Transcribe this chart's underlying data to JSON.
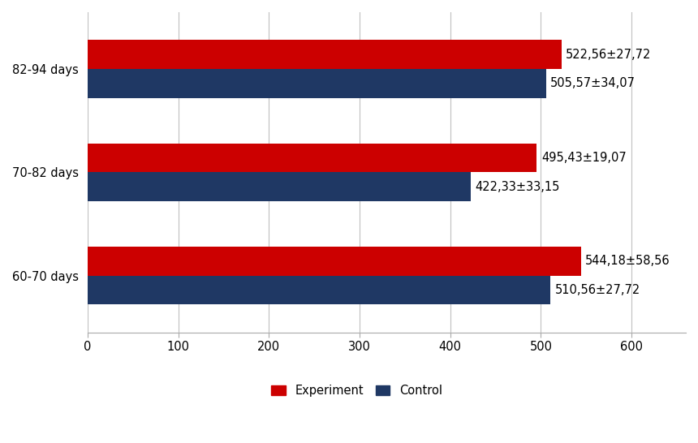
{
  "categories": [
    "82-94 days",
    "70-82 days",
    "60-70 days"
  ],
  "experiment_values": [
    522.56,
    495.43,
    544.18
  ],
  "control_values": [
    505.57,
    422.33,
    510.56
  ],
  "experiment_labels": [
    "522,56±27,72",
    "495,43±19,07",
    "544,18±58,56"
  ],
  "control_labels": [
    "505,57±34,07",
    "422,33±33,15",
    "510,56±27,72"
  ],
  "experiment_color": "#cc0000",
  "control_color": "#1f3864",
  "xlim": [
    0,
    660
  ],
  "xticks": [
    0,
    100,
    200,
    300,
    400,
    500,
    600
  ],
  "legend_experiment": "Experiment",
  "legend_control": "Control",
  "background_color": "#ffffff",
  "label_fontsize": 10.5,
  "tick_fontsize": 10.5,
  "legend_fontsize": 10.5,
  "bar_height": 0.28,
  "bar_gap": 0.0,
  "group_centers": [
    2.0,
    1.0,
    0.0
  ],
  "ylim": [
    -0.55,
    2.55
  ]
}
